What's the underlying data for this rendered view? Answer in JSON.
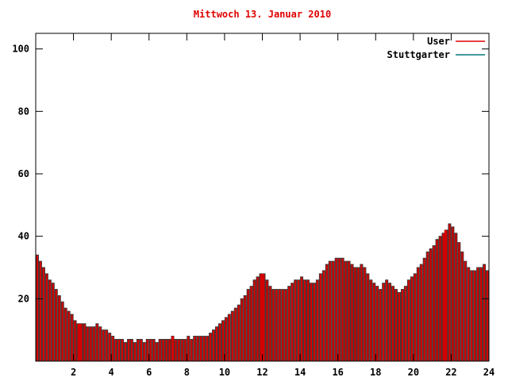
{
  "title": "Mittwoch 13. Januar 2010",
  "title_color": "#e00000",
  "legend": [
    {
      "label": "User",
      "color": "#e00000"
    },
    {
      "label": "Stuttgarter",
      "color": "#007a7a"
    }
  ],
  "chart_data": {
    "type": "bar",
    "title": "Mittwoch 13. Januar 2010",
    "xlabel": "",
    "ylabel": "",
    "xlim": [
      0,
      24
    ],
    "ylim": [
      0,
      105
    ],
    "x_ticks": [
      2,
      4,
      6,
      8,
      10,
      12,
      14,
      16,
      18,
      20,
      22,
      24
    ],
    "y_ticks": [
      20,
      40,
      60,
      80,
      100
    ],
    "grid": false,
    "legend_position": "top-right",
    "bar_fill": "#d40000",
    "bar_edge": "#3a3a3a",
    "x_start": 0,
    "x_step_minutes": 10,
    "series_name": "User",
    "values": [
      34,
      32,
      30,
      28,
      26,
      25,
      23,
      21,
      19,
      17,
      16,
      15,
      13,
      12,
      12,
      12,
      11,
      11,
      11,
      12,
      11,
      10,
      10,
      9,
      8,
      7,
      7,
      7,
      6,
      7,
      7,
      6,
      7,
      7,
      6,
      7,
      7,
      7,
      6,
      7,
      7,
      7,
      7,
      8,
      7,
      7,
      7,
      7,
      8,
      7,
      8,
      8,
      8,
      8,
      8,
      9,
      10,
      11,
      12,
      13,
      14,
      15,
      16,
      17,
      18,
      20,
      21,
      23,
      24,
      26,
      27,
      28,
      28,
      26,
      24,
      23,
      23,
      23,
      23,
      23,
      24,
      25,
      26,
      26,
      27,
      26,
      26,
      25,
      25,
      26,
      28,
      29,
      31,
      32,
      32,
      33,
      33,
      33,
      32,
      32,
      31,
      30,
      30,
      31,
      30,
      28,
      26,
      25,
      24,
      23,
      25,
      26,
      25,
      24,
      23,
      22,
      23,
      24,
      26,
      27,
      28,
      30,
      31,
      33,
      35,
      36,
      37,
      39,
      40,
      41,
      42,
      44,
      43,
      41,
      38,
      35,
      32,
      30,
      29,
      29,
      30,
      30,
      31,
      29
    ],
    "highlight_spikes": [
      {
        "x": 2.33,
        "value": 12
      },
      {
        "x": 7.25,
        "value": 8
      },
      {
        "x": 12.0,
        "value": 28
      },
      {
        "x": 21.7,
        "value": 42
      }
    ]
  }
}
